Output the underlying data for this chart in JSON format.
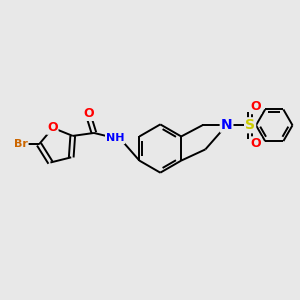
{
  "bg_color": "#e8e8e8",
  "bond_color": "#000000",
  "atom_colors": {
    "O": "#ff0000",
    "N": "#0000ff",
    "S": "#cccc00",
    "Br": "#cc6600",
    "C": "#000000"
  },
  "font_size": 8,
  "bond_width": 1.4,
  "scale": 0.85
}
